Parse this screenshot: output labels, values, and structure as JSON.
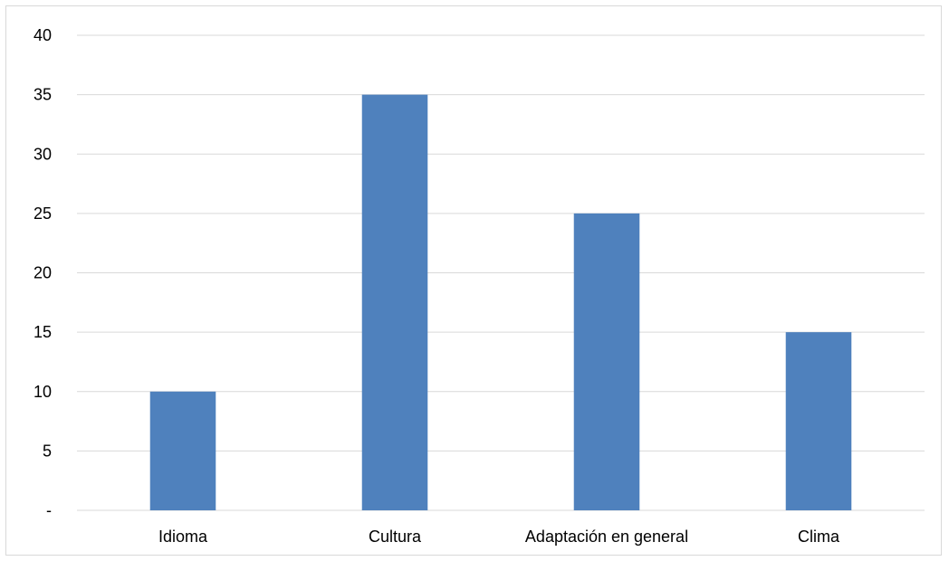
{
  "chart_data": {
    "type": "bar",
    "categories": [
      "Idioma",
      "Cultura",
      "Adaptación en general",
      "Clima"
    ],
    "values": [
      10,
      35,
      25,
      15
    ],
    "title": "",
    "xlabel": "",
    "ylabel": "",
    "ylim": [
      0,
      40
    ],
    "yticks": [
      0,
      5,
      10,
      15,
      20,
      25,
      30,
      35,
      40
    ],
    "ytick_labels": [
      "-",
      "5",
      "10",
      "15",
      "20",
      "25",
      "30",
      "35",
      "40"
    ],
    "grid": true,
    "legend": "none",
    "bar_color": "#4F81BD",
    "grid_color": "#d9d9d9"
  }
}
